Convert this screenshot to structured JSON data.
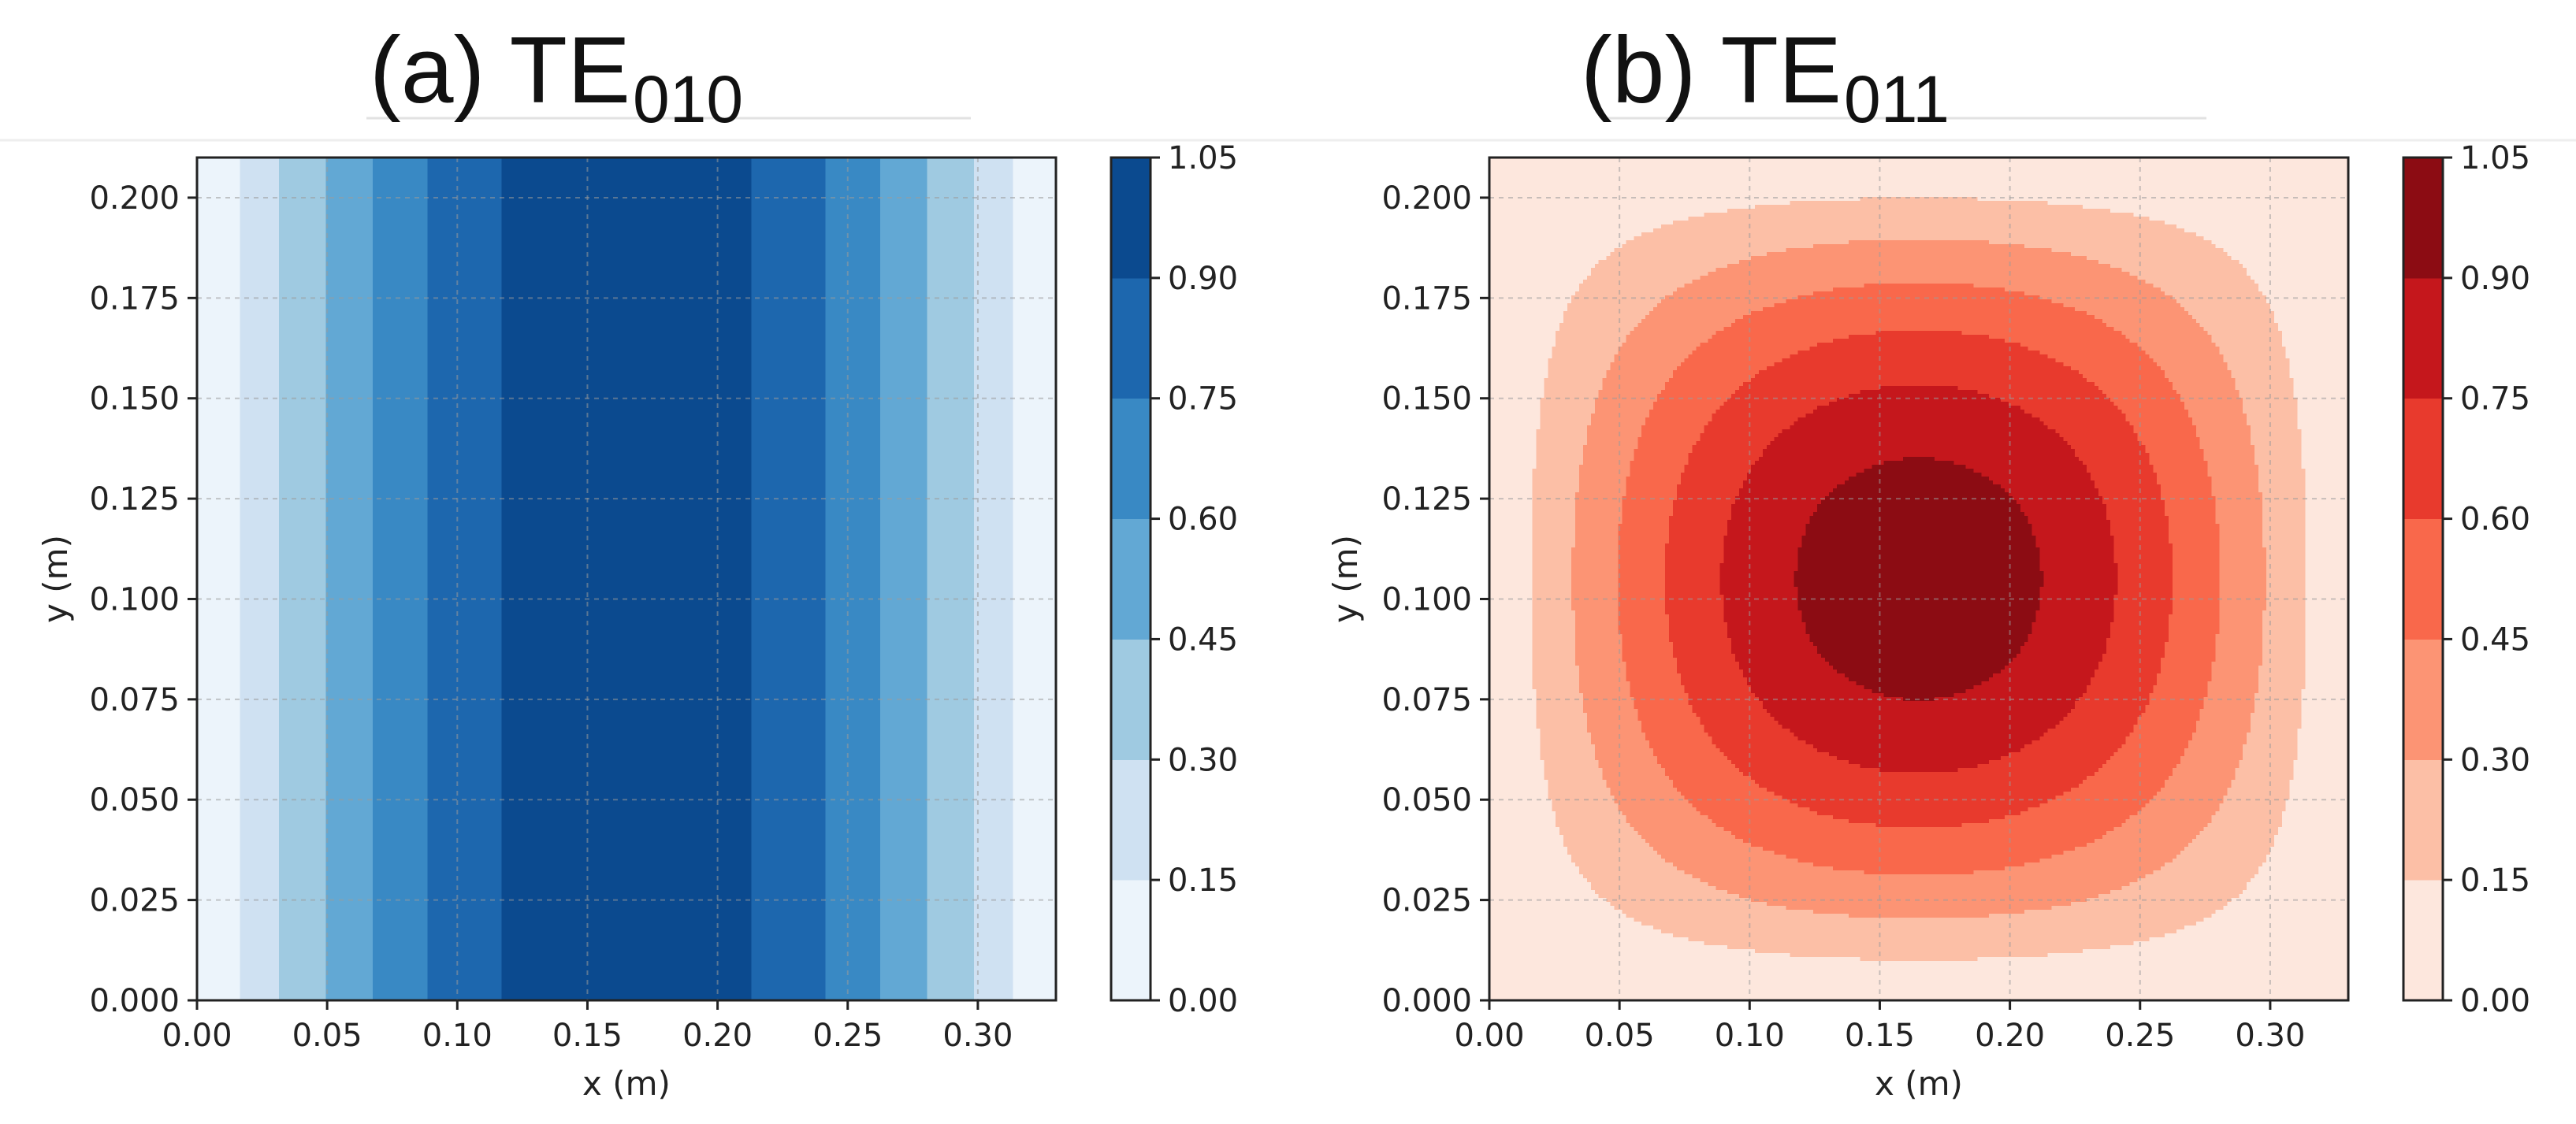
{
  "chart_data": [
    {
      "type": "heatmap",
      "subtype": "filled-contour",
      "panel_prefix": "(a) TE",
      "panel_subscript": "010",
      "title": "(a) TE010",
      "xlabel": "x (m)",
      "ylabel": "y (m)",
      "xlim": [
        0,
        0.33
      ],
      "ylim": [
        0,
        0.21
      ],
      "xticks": [
        "0.00",
        "0.05",
        "0.10",
        "0.15",
        "0.20",
        "0.25",
        "0.30"
      ],
      "yticks": [
        "0.000",
        "0.025",
        "0.050",
        "0.075",
        "0.100",
        "0.125",
        "0.150",
        "0.175",
        "0.200"
      ],
      "grid": true,
      "colormap": "Blues",
      "field": "sin(pi*x/a)",
      "dimensions_m": {
        "a": 0.33,
        "b": 0.21
      },
      "contour_levels": [
        0,
        0.15,
        0.3,
        0.45,
        0.6,
        0.75,
        0.9,
        1.05
      ],
      "colorbar_ticks": [
        "0.00",
        "0.15",
        "0.30",
        "0.45",
        "0.60",
        "0.75",
        "0.90",
        "1.05"
      ],
      "level_colors": [
        "#ecf4fb",
        "#cfe1f2",
        "#9fcae1",
        "#62a8d4",
        "#3989c4",
        "#1d67ae",
        "#0b4a8f"
      ]
    },
    {
      "type": "heatmap",
      "subtype": "filled-contour",
      "panel_prefix": "(b) TE",
      "panel_subscript": "011",
      "title": "(b) TE011",
      "xlabel": "x (m)",
      "ylabel": "y (m)",
      "xlim": [
        0,
        0.33
      ],
      "ylim": [
        0,
        0.21
      ],
      "xticks": [
        "0.00",
        "0.05",
        "0.10",
        "0.15",
        "0.20",
        "0.25",
        "0.30"
      ],
      "yticks": [
        "0.000",
        "0.025",
        "0.050",
        "0.075",
        "0.100",
        "0.125",
        "0.150",
        "0.175",
        "0.200"
      ],
      "grid": true,
      "colormap": "Reds",
      "field": "sin(pi*x/a)*sin(pi*y/b)",
      "dimensions_m": {
        "a": 0.33,
        "b": 0.21
      },
      "contour_levels": [
        0,
        0.15,
        0.3,
        0.45,
        0.6,
        0.75,
        0.9,
        1.05
      ],
      "colorbar_ticks": [
        "0.00",
        "0.15",
        "0.30",
        "0.45",
        "0.60",
        "0.75",
        "0.90",
        "1.05"
      ],
      "level_colors": [
        "#fde7dd",
        "#fcbfa6",
        "#fc9474",
        "#f9684b",
        "#e83a2d",
        "#c5171c",
        "#8c0c13"
      ]
    }
  ]
}
